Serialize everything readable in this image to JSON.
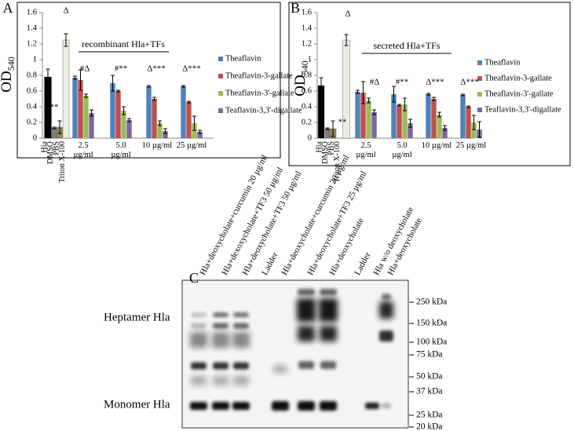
{
  "chart_data": [
    {
      "type": "bar",
      "panel": "A",
      "subtitle": "recombinant Hla+TFs",
      "ylabel": "OD",
      "ylabel_subscript": "540",
      "ylim": [
        0,
        1.6
      ],
      "yticks": [
        0,
        0.2,
        0.4,
        0.6,
        0.8,
        1,
        1.2,
        1.4,
        1.6
      ],
      "controls": {
        "categories": [
          "Hla",
          "DMSO",
          "PBS",
          "Triton X-100"
        ],
        "values": [
          0.78,
          0.13,
          0.14,
          1.25
        ],
        "errors": [
          0.1,
          0.01,
          0.08,
          0.08
        ],
        "colors": [
          "#000000",
          "#7f7f7f",
          "#8c8a5e",
          "#eeece1"
        ]
      },
      "categories": [
        "2.5 µg/ml",
        "5.0 µg/ml",
        "10 µg/ml",
        "25 µg/ml"
      ],
      "series": [
        {
          "name": "Theaflavin",
          "color": "#4f81bd",
          "values": [
            0.77,
            0.7,
            0.66,
            0.66
          ],
          "errors": [
            0.02,
            0.1,
            0.01,
            0.01
          ]
        },
        {
          "name": "Theaflavin-3-gallate",
          "color": "#c0504d",
          "values": [
            0.74,
            0.6,
            0.5,
            0.46
          ],
          "errors": [
            0.13,
            0.01,
            0.02,
            0.01
          ]
        },
        {
          "name": "Theaflavin-3'-gallate",
          "color": "#9bbb59",
          "values": [
            0.54,
            0.35,
            0.19,
            0.19
          ],
          "errors": [
            0.02,
            0.05,
            0.03,
            0.09
          ]
        },
        {
          "name": "Teaflavin-3,3'-digallate",
          "color": "#8064a2",
          "values": [
            0.32,
            0.23,
            0.09,
            0.08
          ],
          "errors": [
            0.04,
            0.02,
            0.03,
            0.02
          ]
        }
      ],
      "annotations": [
        "**",
        "Δ",
        "#Δ",
        "#**",
        "Δ***",
        "Δ***"
      ]
    },
    {
      "type": "bar",
      "panel": "B",
      "subtitle": "secreted Hla+TFs",
      "ylabel": "OD",
      "ylabel_subscript": "540",
      "ylim": [
        0,
        1.6
      ],
      "yticks": [
        0,
        0.2,
        0.4,
        0.6,
        0.8,
        1,
        1.2,
        1.4,
        1.6
      ],
      "controls": {
        "categories": [
          "Hla",
          "DMSO",
          "PBS",
          "Triton X-100"
        ],
        "values": [
          0.67,
          0.12,
          0.12,
          1.25
        ],
        "errors": [
          0.1,
          0.01,
          0.1,
          0.07
        ],
        "colors": [
          "#000000",
          "#7f7f7f",
          "#8c8a5e",
          "#eeece1"
        ]
      },
      "categories": [
        "2.5 µg/ml",
        "5.0 µg/ml",
        "10 µg/ml",
        "25 µg/ml"
      ],
      "series": [
        {
          "name": "Theaflavin",
          "color": "#4f81bd",
          "values": [
            0.59,
            0.56,
            0.56,
            0.55
          ],
          "errors": [
            0.02,
            0.1,
            0.01,
            0.01
          ]
        },
        {
          "name": "Theaflavin-3-gallate",
          "color": "#c0504d",
          "values": [
            0.58,
            0.42,
            0.5,
            0.4
          ],
          "errors": [
            0.14,
            0.01,
            0.02,
            0.01
          ]
        },
        {
          "name": "Theaflavin-3'-gallate",
          "color": "#9bbb59",
          "values": [
            0.48,
            0.43,
            0.3,
            0.2
          ],
          "errors": [
            0.03,
            0.08,
            0.03,
            0.09
          ]
        },
        {
          "name": "Teaflavin-3,3'-digallate",
          "color": "#8064a2",
          "values": [
            0.33,
            0.19,
            0.13,
            0.11
          ],
          "errors": [
            0.03,
            0.05,
            0.03,
            0.1
          ]
        }
      ],
      "annotations": [
        "**",
        "Δ",
        "#Δ",
        "#**",
        "Δ***",
        "Δ***"
      ]
    }
  ],
  "blot": {
    "panel": "C",
    "lanes": [
      "Hla+deoxycholate+curcumin 20 µg/ml",
      "Hla+dexoxycholate+TF3 50 µg/ml",
      "Hla+deoxycholate+TF3 50 µg/ml",
      "Ladder",
      "Hla+deoxycholate+curcumin 20 µg/ml",
      "Hla+deoxycholate+TF3 25 µg/ml",
      "Hla+deoxycholate",
      "Ladder",
      "Hla w/o deoxycholate",
      "Hla+deoxycholate"
    ],
    "row_labels": [
      "Heptamer Hla",
      "Monomer Hla"
    ],
    "markers": [
      "250 kDa",
      "150 kDa",
      "100 kDa",
      "75 kDa",
      "50 kDa",
      "37 kDa",
      "25 kDa",
      "20 kDa"
    ]
  }
}
